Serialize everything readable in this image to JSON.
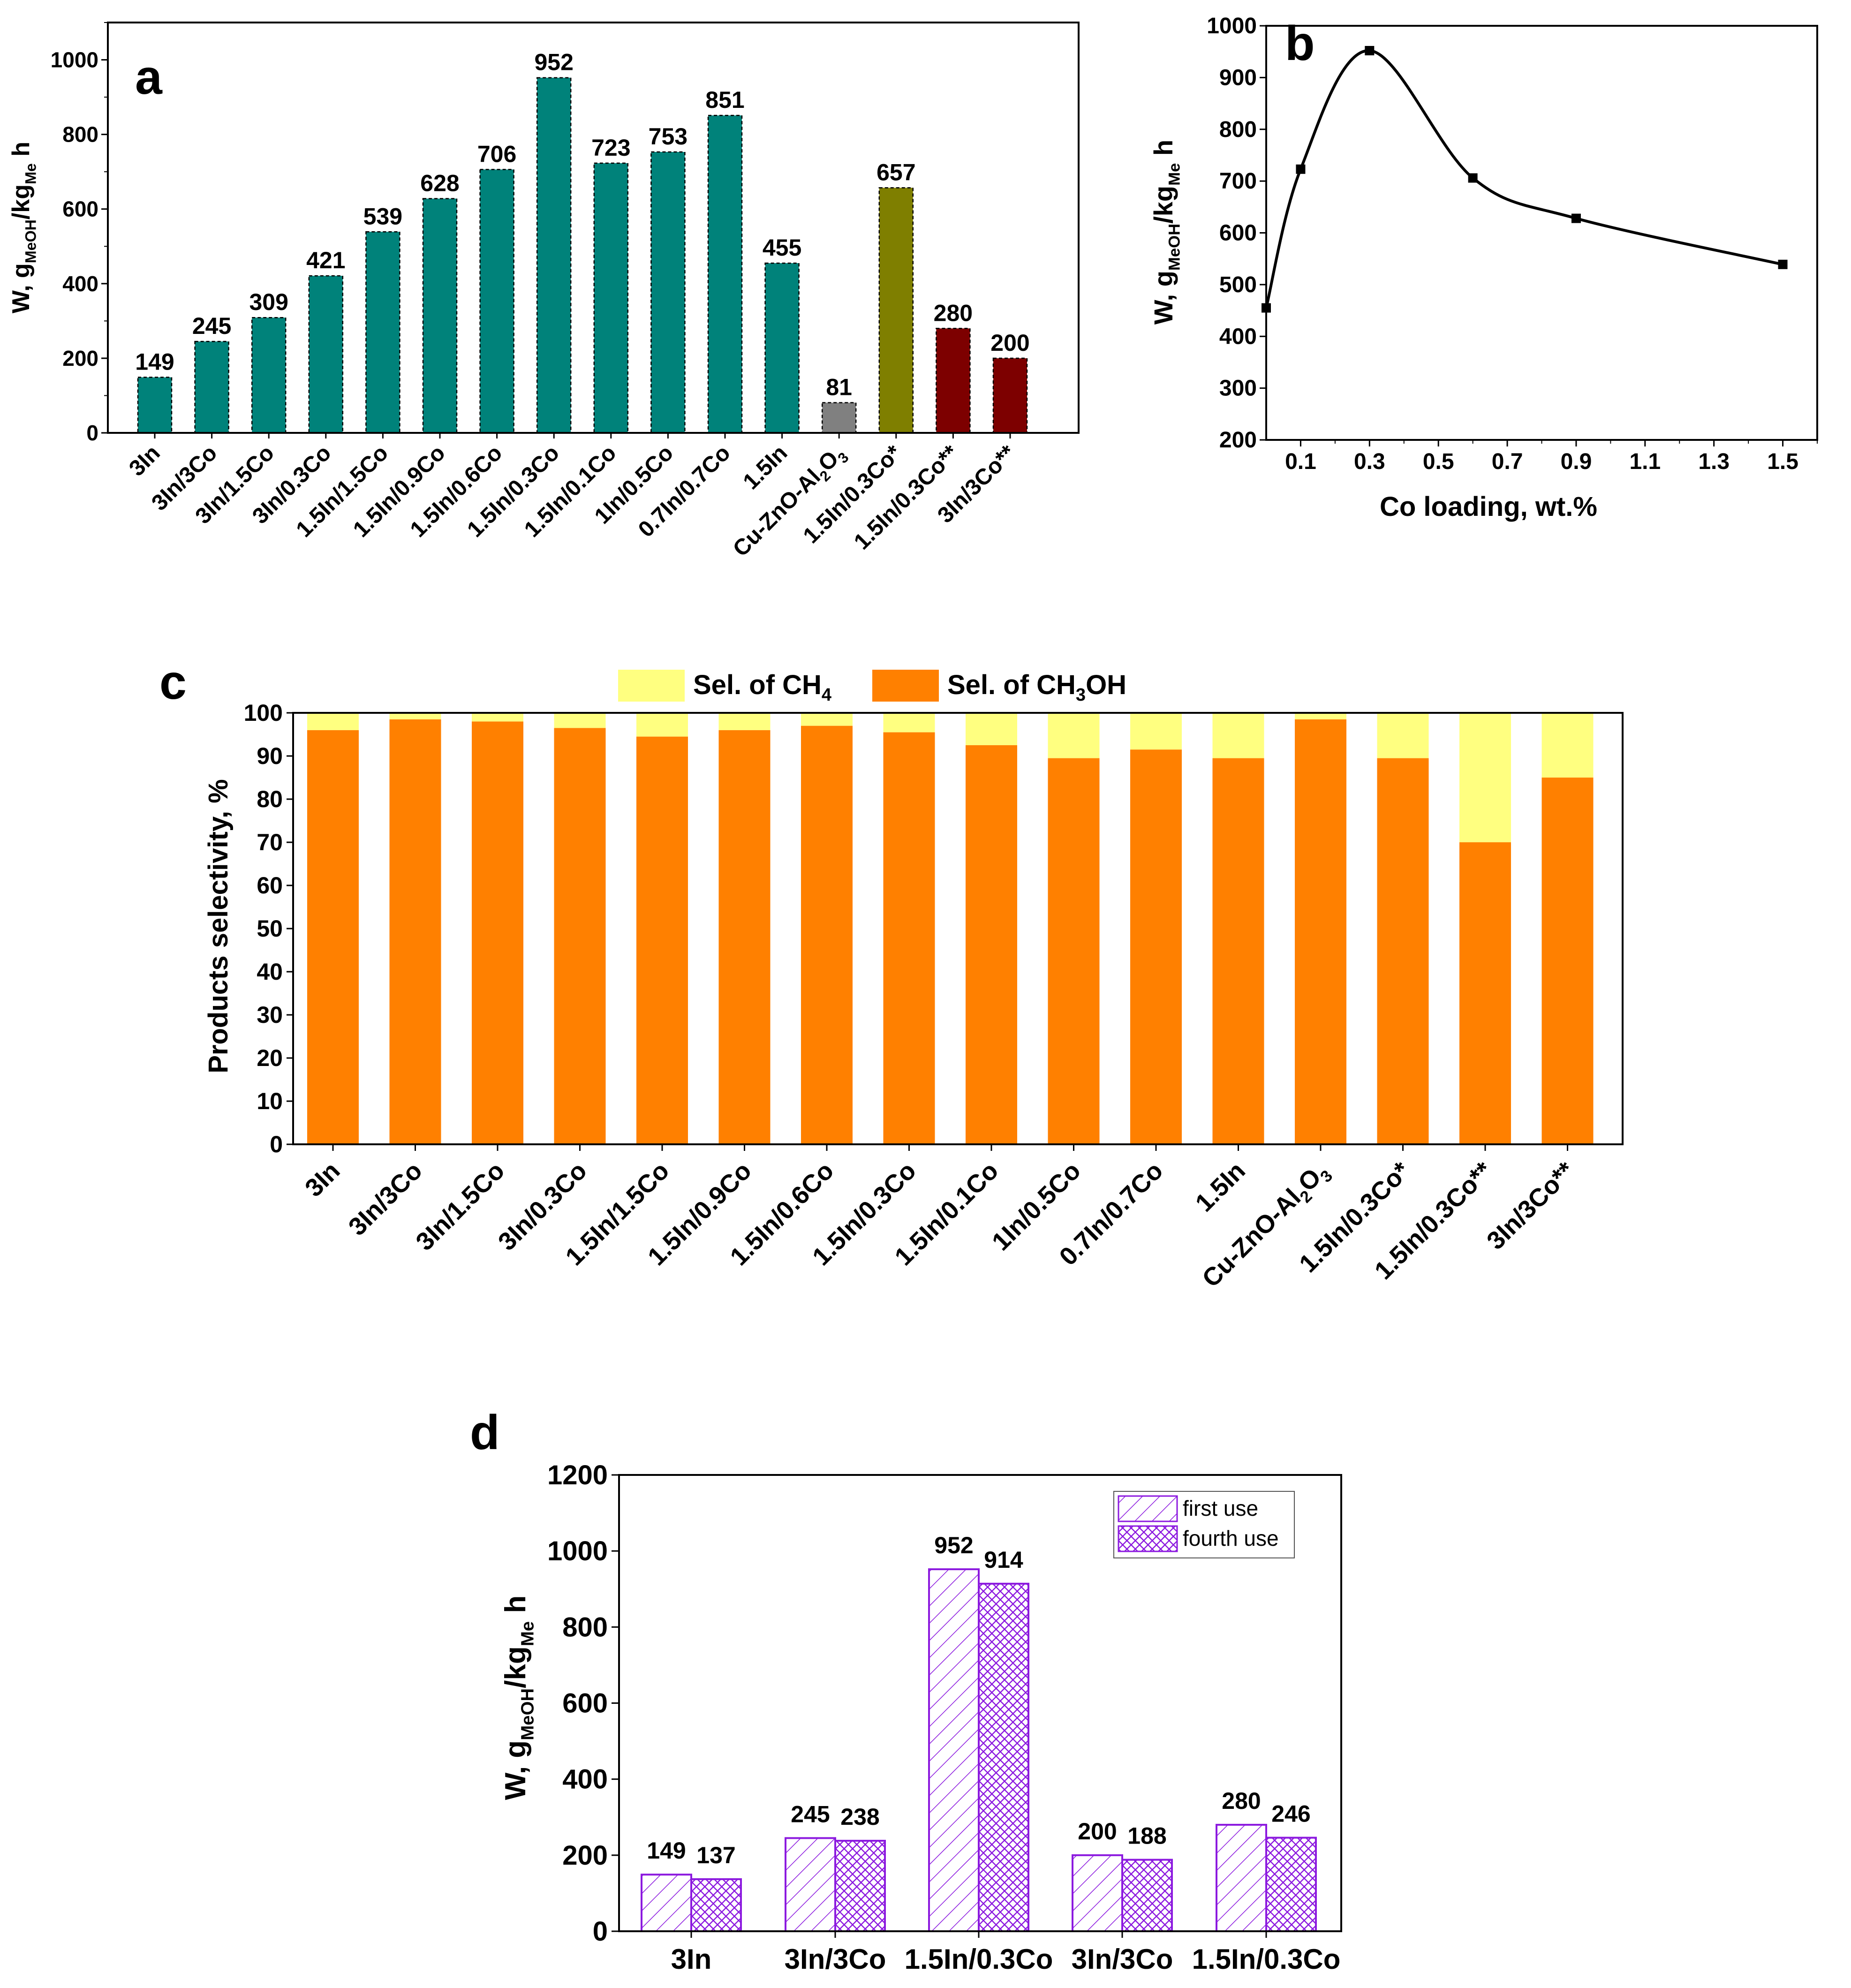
{
  "colors": {
    "teal": "#00827a",
    "gray": "#808080",
    "olive": "#7f7f00",
    "darkred": "#7d0000",
    "orange": "#ff8000",
    "yellow": "#ffff80",
    "purple": "#8c1adf"
  },
  "chart_data": [
    {
      "id": "a",
      "panel_label": "a",
      "type": "bar",
      "ylabel": {
        "main": "W, g",
        "sub1": "MeOH",
        "mid": "/kg",
        "sub2": "Me",
        "tail": "h"
      },
      "ylim": [
        0,
        1100
      ],
      "yticks": [
        "0",
        "200",
        "400",
        "600",
        "800",
        "1000"
      ],
      "categories": [
        {
          "text": "3In"
        },
        {
          "text": "3In/3Co"
        },
        {
          "text": "3In/1.5Co"
        },
        {
          "text": "3In/0.3Co"
        },
        {
          "text": "1.5In/1.5Co"
        },
        {
          "text": "1.5In/0.9Co"
        },
        {
          "text": "1.5In/0.6Co"
        },
        {
          "text": "1.5In/0.3Co"
        },
        {
          "text": "1.5In/0.1Co"
        },
        {
          "text": "1In/0.5Co"
        },
        {
          "text": "0.7In/0.7Co"
        },
        {
          "text": "1.5In"
        },
        {
          "text": "Cu-ZnO-Al",
          "sub1": "2",
          "mid": "O",
          "sub2": "3"
        },
        {
          "text": "1.5In/0.3Co*"
        },
        {
          "text": "1.5In/0.3Co**"
        },
        {
          "text": "3In/3Co**"
        }
      ],
      "values": [
        149,
        245,
        309,
        421,
        539,
        628,
        706,
        952,
        723,
        753,
        851,
        455,
        81,
        657,
        280,
        200
      ],
      "value_labels": [
        "149",
        "245",
        "309",
        "421",
        "539",
        "628",
        "706",
        "952",
        "723",
        "753",
        "851",
        "455",
        "81",
        "657",
        "280",
        "200"
      ],
      "bar_colors": [
        "teal",
        "teal",
        "teal",
        "teal",
        "teal",
        "teal",
        "teal",
        "teal",
        "teal",
        "teal",
        "teal",
        "teal",
        "gray",
        "olive",
        "darkred",
        "darkred"
      ]
    },
    {
      "id": "b",
      "panel_label": "b",
      "type": "line",
      "xlabel": "Co loading, wt.%",
      "ylabel": {
        "main": "W, g",
        "sub1": "MeOH",
        "mid": "/kg",
        "sub2": "Me",
        "tail": "h"
      },
      "xlim": [
        0,
        1.6
      ],
      "ylim": [
        200,
        1000
      ],
      "xticks": [
        "0.1",
        "0.3",
        "0.5",
        "0.7",
        "0.9",
        "1.1",
        "1.3",
        "1.5"
      ],
      "yticks": [
        "200",
        "300",
        "400",
        "500",
        "600",
        "700",
        "800",
        "900",
        "1000"
      ],
      "x": [
        0,
        0.1,
        0.3,
        0.6,
        0.9,
        1.5
      ],
      "y": [
        455,
        723,
        952,
        706,
        628,
        539
      ]
    },
    {
      "id": "c",
      "panel_label": "c",
      "type": "bar",
      "stacked": true,
      "ylabel": "Products selectivity, %",
      "ylim": [
        0,
        100
      ],
      "yticks": [
        "0",
        "10",
        "20",
        "30",
        "40",
        "50",
        "60",
        "70",
        "80",
        "90",
        "100"
      ],
      "legend": [
        {
          "text": "Sel. of CH",
          "sub": "4",
          "tail": "",
          "color": "yellow"
        },
        {
          "text": "Sel. of CH",
          "sub": "3",
          "tail": "OH",
          "color": "orange"
        }
      ],
      "categories": [
        {
          "text": "3In"
        },
        {
          "text": "3In/3Co"
        },
        {
          "text": "3In/1.5Co"
        },
        {
          "text": "3In/0.3Co"
        },
        {
          "text": "1.5In/1.5Co"
        },
        {
          "text": "1.5In/0.9Co"
        },
        {
          "text": "1.5In/0.6Co"
        },
        {
          "text": "1.5In/0.3Co"
        },
        {
          "text": "1.5In/0.1Co"
        },
        {
          "text": "1In/0.5Co"
        },
        {
          "text": "0.7In/0.7Co"
        },
        {
          "text": "1.5In"
        },
        {
          "text": "Cu-ZnO-Al",
          "sub1": "2",
          "mid": "O",
          "sub2": "3"
        },
        {
          "text": "1.5In/0.3Co*"
        },
        {
          "text": "1.5In/0.3Co**"
        },
        {
          "text": "3In/3Co**"
        }
      ],
      "series": [
        {
          "name": "Sel. of CH3OH",
          "values": [
            96,
            98.5,
            98,
            96.5,
            94.5,
            96,
            97,
            95.5,
            92.5,
            89.5,
            91.5,
            89.5,
            98.5,
            89.5,
            70,
            85
          ]
        },
        {
          "name": "Sel. of CH4",
          "values": [
            4,
            1.5,
            2,
            3.5,
            5.5,
            4,
            3,
            4.5,
            7.5,
            10.5,
            8.5,
            10.5,
            1.5,
            10.5,
            30,
            15
          ]
        }
      ]
    },
    {
      "id": "d",
      "panel_label": "d",
      "type": "bar",
      "grouped": true,
      "ylabel": {
        "main": "W, g",
        "sub1": "MeOH",
        "mid": "/kg",
        "sub2": "Me",
        "tail": "h"
      },
      "ylim": [
        0,
        1200
      ],
      "yticks": [
        "0",
        "200",
        "400",
        "600",
        "800",
        "1000",
        "1200"
      ],
      "categories": [
        "3In",
        "3In/3Co",
        "1.5In/0.3Co",
        "3In/3Co",
        "1.5In/0.3Co"
      ],
      "legend": [
        "first use",
        "fourth use"
      ],
      "series": [
        {
          "name": "first use",
          "values": [
            149,
            245,
            952,
            200,
            280
          ],
          "labels": [
            "149",
            "245",
            "952",
            "200",
            "280"
          ]
        },
        {
          "name": "fourth use",
          "values": [
            137,
            238,
            914,
            188,
            246
          ],
          "labels": [
            "137",
            "238",
            "914",
            "188",
            "246"
          ]
        }
      ]
    }
  ]
}
